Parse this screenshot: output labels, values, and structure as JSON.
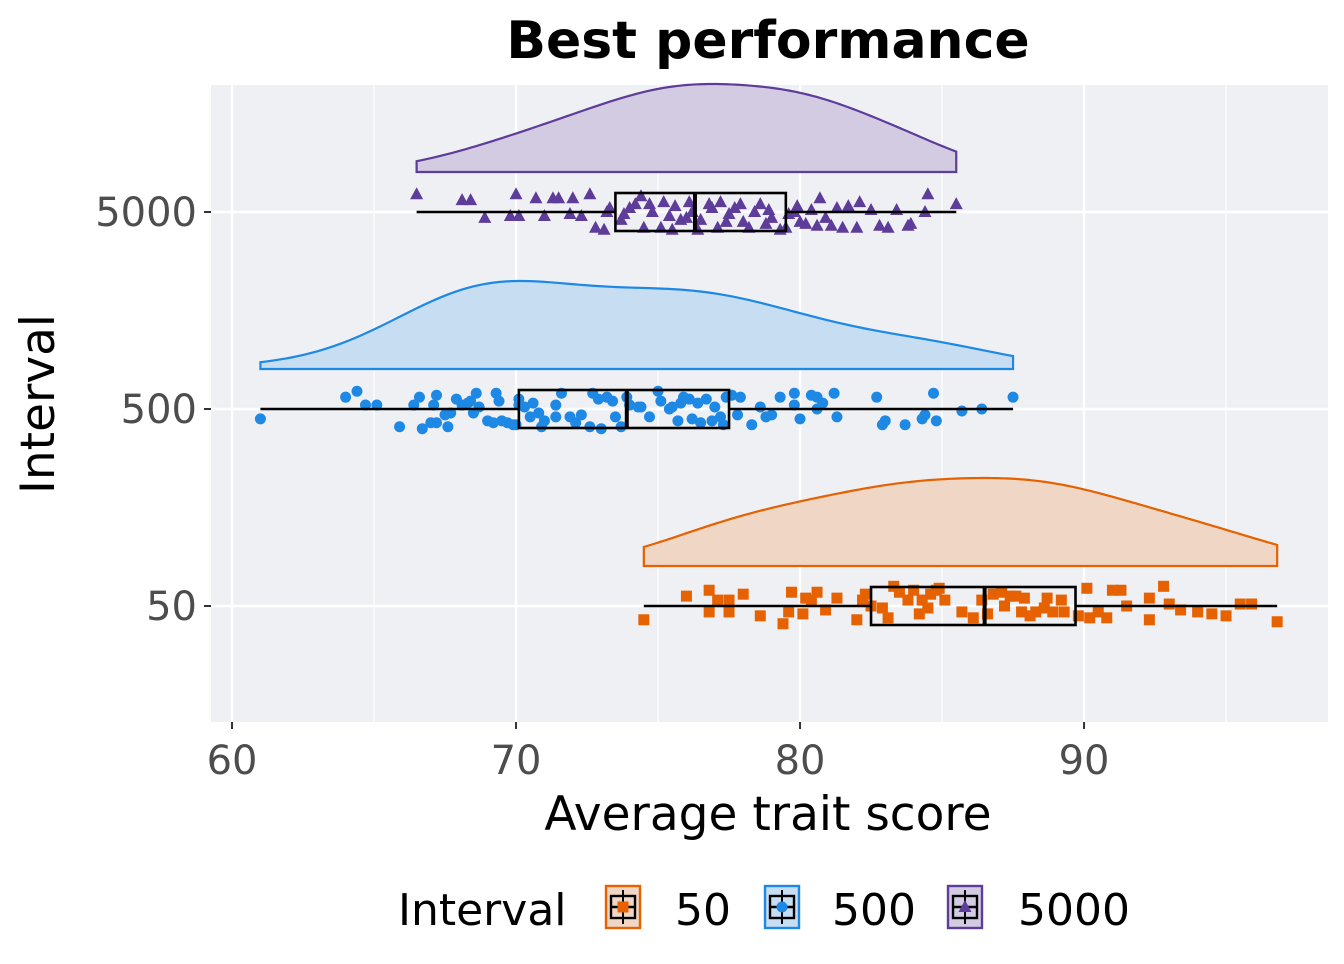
{
  "chart_data": {
    "type": "raincloud",
    "title": "Best performance",
    "xlabel": "Average trait score",
    "ylabel": "Interval",
    "xlim": [
      59.26,
      98.59
    ],
    "x_ticks": [
      60,
      70,
      80,
      90
    ],
    "x_tick_labels": [
      "60",
      "70",
      "80",
      "90"
    ],
    "categories": [
      "50",
      "500",
      "5000"
    ],
    "legend": {
      "title": "Interval",
      "position": "bottom",
      "entries": [
        "50",
        "500",
        "5000"
      ]
    },
    "grid": true,
    "series": [
      {
        "name": "50",
        "color": "#E66100",
        "fill": "#F0D6C4",
        "shape": "square",
        "box": {
          "whisker_low": 74.5,
          "q1": 82.5,
          "median": 86.5,
          "q3": 89.7,
          "whisker_high": 96.8
        },
        "points": [
          [
            74.5,
            -0.07
          ],
          [
            76.0,
            0.05
          ],
          [
            76.8,
            -0.03
          ],
          [
            76.8,
            0.08
          ],
          [
            77.1,
            0.03
          ],
          [
            77.5,
            -0.03
          ],
          [
            77.5,
            0.03
          ],
          [
            78.0,
            0.06
          ],
          [
            78.6,
            -0.05
          ],
          [
            79.4,
            -0.09
          ],
          [
            79.6,
            -0.03
          ],
          [
            79.7,
            0.07
          ],
          [
            80.1,
            -0.04
          ],
          [
            80.2,
            0.04
          ],
          [
            80.4,
            0.03
          ],
          [
            80.6,
            0.07
          ],
          [
            80.9,
            -0.02
          ],
          [
            81.3,
            0.04
          ],
          [
            82.0,
            -0.07
          ],
          [
            82.2,
            0.03
          ],
          [
            82.3,
            0.06
          ],
          [
            82.5,
            0.0
          ],
          [
            82.9,
            -0.01
          ],
          [
            83.1,
            -0.06
          ],
          [
            83.3,
            0.1
          ],
          [
            83.5,
            0.07
          ],
          [
            83.8,
            0.03
          ],
          [
            84.0,
            0.08
          ],
          [
            84.2,
            -0.04
          ],
          [
            84.3,
            0.03
          ],
          [
            84.5,
            -0.01
          ],
          [
            84.6,
            0.06
          ],
          [
            84.8,
            0.08
          ],
          [
            84.9,
            0.09
          ],
          [
            85.1,
            0.03
          ],
          [
            85.7,
            -0.03
          ],
          [
            86.1,
            -0.06
          ],
          [
            86.4,
            0.03
          ],
          [
            86.6,
            -0.04
          ],
          [
            86.8,
            0.06
          ],
          [
            87.1,
            0.07
          ],
          [
            87.2,
            0.0
          ],
          [
            87.4,
            0.05
          ],
          [
            87.6,
            0.05
          ],
          [
            87.8,
            -0.03
          ],
          [
            87.9,
            0.04
          ],
          [
            88.1,
            -0.05
          ],
          [
            88.3,
            -0.03
          ],
          [
            88.6,
            -0.01
          ],
          [
            88.7,
            0.04
          ],
          [
            88.9,
            -0.03
          ],
          [
            89.2,
            0.03
          ],
          [
            89.3,
            -0.03
          ],
          [
            89.8,
            -0.05
          ],
          [
            90.1,
            0.09
          ],
          [
            90.2,
            -0.06
          ],
          [
            90.5,
            -0.03
          ],
          [
            90.8,
            -0.06
          ],
          [
            91.0,
            0.08
          ],
          [
            91.3,
            0.08
          ],
          [
            91.5,
            0.0
          ],
          [
            92.3,
            -0.07
          ],
          [
            92.3,
            0.04
          ],
          [
            92.8,
            0.1
          ],
          [
            93.0,
            0.01
          ],
          [
            93.4,
            -0.02
          ],
          [
            94.0,
            -0.03
          ],
          [
            94.5,
            -0.04
          ],
          [
            95.0,
            -0.05
          ],
          [
            95.5,
            0.01
          ],
          [
            95.9,
            0.01
          ],
          [
            96.8,
            -0.08
          ]
        ]
      },
      {
        "name": "500",
        "color": "#1E88E5",
        "fill": "#C6DDF2",
        "shape": "circle",
        "box": {
          "whisker_low": 61.0,
          "q1": 70.1,
          "median": 73.9,
          "q3": 77.5,
          "whisker_high": 87.5
        },
        "points": [
          [
            61.0,
            -0.05
          ],
          [
            64.0,
            0.06
          ],
          [
            64.4,
            0.09
          ],
          [
            64.7,
            0.02
          ],
          [
            65.1,
            0.02
          ],
          [
            65.9,
            -0.09
          ],
          [
            66.4,
            0.02
          ],
          [
            66.6,
            0.06
          ],
          [
            66.7,
            -0.1
          ],
          [
            67.0,
            -0.07
          ],
          [
            67.1,
            0.02
          ],
          [
            67.2,
            -0.07
          ],
          [
            67.2,
            0.07
          ],
          [
            67.5,
            -0.03
          ],
          [
            67.7,
            -0.02
          ],
          [
            67.6,
            -0.09
          ],
          [
            67.9,
            0.05
          ],
          [
            68.1,
            0.02
          ],
          [
            68.3,
            0.03
          ],
          [
            68.4,
            0.04
          ],
          [
            68.5,
            -0.02
          ],
          [
            68.6,
            0.08
          ],
          [
            68.7,
            0.01
          ],
          [
            69.0,
            -0.06
          ],
          [
            69.2,
            -0.07
          ],
          [
            69.3,
            0.08
          ],
          [
            69.4,
            0.04
          ],
          [
            69.5,
            -0.06
          ],
          [
            69.7,
            -0.07
          ],
          [
            69.9,
            -0.08
          ],
          [
            70.0,
            -0.08
          ],
          [
            70.1,
            0.05
          ],
          [
            70.1,
            0.02
          ],
          [
            70.3,
            0.01
          ],
          [
            70.5,
            -0.04
          ],
          [
            70.6,
            0.03
          ],
          [
            70.8,
            -0.02
          ],
          [
            70.9,
            -0.09
          ],
          [
            71.0,
            -0.06
          ],
          [
            71.4,
            -0.04
          ],
          [
            71.4,
            0.02
          ],
          [
            71.6,
            0.08
          ],
          [
            71.9,
            -0.04
          ],
          [
            72.1,
            -0.07
          ],
          [
            72.3,
            -0.03
          ],
          [
            72.6,
            -0.09
          ],
          [
            72.7,
            0.08
          ],
          [
            72.9,
            0.05
          ],
          [
            73.0,
            -0.1
          ],
          [
            73.2,
            0.06
          ],
          [
            73.4,
            0.04
          ],
          [
            73.5,
            -0.04
          ],
          [
            73.7,
            -0.09
          ],
          [
            73.9,
            0.06
          ],
          [
            74.0,
            0.02
          ],
          [
            74.3,
            0.01
          ],
          [
            74.4,
            0.01
          ],
          [
            74.7,
            -0.04
          ],
          [
            75.0,
            0.09
          ],
          [
            75.1,
            0.04
          ],
          [
            75.4,
            0.0
          ],
          [
            75.5,
            0.01
          ],
          [
            75.7,
            -0.06
          ],
          [
            75.8,
            0.03
          ],
          [
            75.9,
            0.06
          ],
          [
            76.1,
            0.05
          ],
          [
            76.2,
            -0.05
          ],
          [
            76.4,
            0.03
          ],
          [
            76.5,
            -0.07
          ],
          [
            76.7,
            0.05
          ],
          [
            76.9,
            -0.06
          ],
          [
            77.0,
            0.01
          ],
          [
            77.2,
            -0.04
          ],
          [
            77.3,
            -0.08
          ],
          [
            77.4,
            0.06
          ],
          [
            77.6,
            0.07
          ],
          [
            77.8,
            -0.03
          ],
          [
            77.9,
            0.06
          ],
          [
            78.3,
            -0.08
          ],
          [
            78.6,
            0.01
          ],
          [
            78.8,
            -0.04
          ],
          [
            79.0,
            -0.03
          ],
          [
            79.3,
            0.06
          ],
          [
            79.8,
            0.02
          ],
          [
            79.8,
            0.08
          ],
          [
            80.0,
            -0.05
          ],
          [
            80.4,
            0.07
          ],
          [
            80.6,
            0.0
          ],
          [
            80.6,
            0.06
          ],
          [
            80.8,
            0.03
          ],
          [
            81.2,
            0.08
          ],
          [
            81.3,
            -0.04
          ],
          [
            82.7,
            0.06
          ],
          [
            82.9,
            -0.08
          ],
          [
            83.0,
            -0.06
          ],
          [
            83.7,
            -0.08
          ],
          [
            84.3,
            -0.05
          ],
          [
            84.4,
            -0.03
          ],
          [
            84.7,
            0.08
          ],
          [
            84.8,
            -0.06
          ],
          [
            85.7,
            -0.01
          ],
          [
            86.4,
            0.0
          ],
          [
            87.5,
            0.06
          ]
        ]
      },
      {
        "name": "5000",
        "color": "#5E3C99",
        "fill": "#D2CBE2",
        "shape": "triangle",
        "box": {
          "whisker_low": 66.5,
          "q1": 73.5,
          "median": 76.3,
          "q3": 79.5,
          "whisker_high": 85.5
        },
        "points": [
          [
            66.5,
            0.09
          ],
          [
            68.1,
            0.06
          ],
          [
            68.4,
            0.06
          ],
          [
            68.9,
            -0.03
          ],
          [
            69.8,
            -0.02
          ],
          [
            70.0,
            0.09
          ],
          [
            70.1,
            -0.02
          ],
          [
            70.7,
            0.07
          ],
          [
            71.0,
            -0.02
          ],
          [
            71.3,
            0.07
          ],
          [
            71.5,
            0.07
          ],
          [
            71.9,
            -0.01
          ],
          [
            72.0,
            0.07
          ],
          [
            72.3,
            -0.02
          ],
          [
            72.6,
            0.09
          ],
          [
            72.8,
            -0.08
          ],
          [
            73.1,
            -0.09
          ],
          [
            73.2,
            0.0
          ],
          [
            73.3,
            0.02
          ],
          [
            73.7,
            -0.04
          ],
          [
            73.8,
            -0.01
          ],
          [
            74.0,
            0.02
          ],
          [
            74.2,
            0.04
          ],
          [
            74.4,
            0.08
          ],
          [
            74.5,
            -0.08
          ],
          [
            74.7,
            0.04
          ],
          [
            74.8,
            0.0
          ],
          [
            75.1,
            -0.08
          ],
          [
            75.2,
            0.05
          ],
          [
            75.4,
            -0.02
          ],
          [
            75.5,
            -0.09
          ],
          [
            75.6,
            0.03
          ],
          [
            75.8,
            -0.04
          ],
          [
            76.0,
            -0.03
          ],
          [
            76.1,
            0.05
          ],
          [
            76.2,
            0.0
          ],
          [
            76.4,
            -0.09
          ],
          [
            76.5,
            -0.04
          ],
          [
            76.8,
            0.04
          ],
          [
            76.9,
            0.02
          ],
          [
            77.1,
            -0.08
          ],
          [
            77.2,
            0.05
          ],
          [
            77.4,
            -0.05
          ],
          [
            77.5,
            -0.01
          ],
          [
            77.7,
            0.02
          ],
          [
            77.9,
            0.04
          ],
          [
            78.0,
            -0.05
          ],
          [
            78.2,
            -0.08
          ],
          [
            78.4,
            0.0
          ],
          [
            78.6,
            0.04
          ],
          [
            78.8,
            -0.06
          ],
          [
            78.9,
            0.01
          ],
          [
            79.0,
            -0.03
          ],
          [
            79.3,
            -0.09
          ],
          [
            79.5,
            -0.08
          ],
          [
            79.6,
            -0.01
          ],
          [
            79.8,
            0.0
          ],
          [
            79.9,
            0.03
          ],
          [
            80.0,
            -0.05
          ],
          [
            80.2,
            -0.06
          ],
          [
            80.4,
            0.01
          ],
          [
            80.6,
            -0.07
          ],
          [
            80.7,
            0.07
          ],
          [
            80.9,
            -0.03
          ],
          [
            81.1,
            -0.07
          ],
          [
            81.3,
            0.02
          ],
          [
            81.5,
            -0.08
          ],
          [
            81.7,
            0.03
          ],
          [
            82.0,
            -0.08
          ],
          [
            82.1,
            0.05
          ],
          [
            82.5,
            0.01
          ],
          [
            82.8,
            -0.07
          ],
          [
            83.1,
            -0.08
          ],
          [
            83.4,
            0.01
          ],
          [
            83.8,
            -0.07
          ],
          [
            83.9,
            -0.06
          ],
          [
            84.4,
            0.0
          ],
          [
            84.5,
            0.09
          ],
          [
            85.5,
            0.04
          ]
        ]
      }
    ]
  }
}
